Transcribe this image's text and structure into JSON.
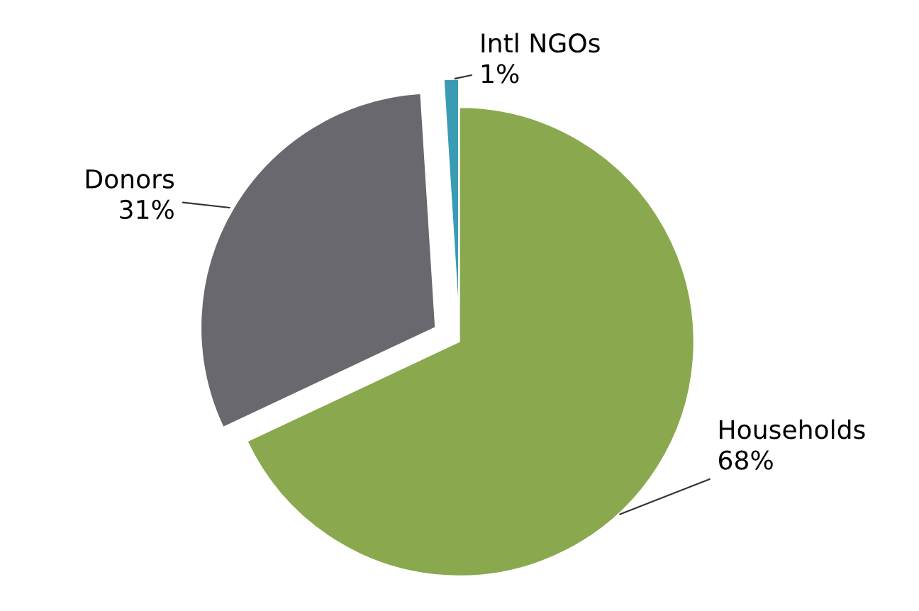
{
  "chart_data": {
    "type": "pie",
    "categories": [
      "Households",
      "Donors",
      "Intl NGOs"
    ],
    "values": [
      68,
      31,
      1
    ],
    "value_labels": [
      "68%",
      "31%",
      "1%"
    ],
    "colors": [
      "#8aa84e",
      "#68686e",
      "#3a9bb5"
    ],
    "legend": false
  }
}
